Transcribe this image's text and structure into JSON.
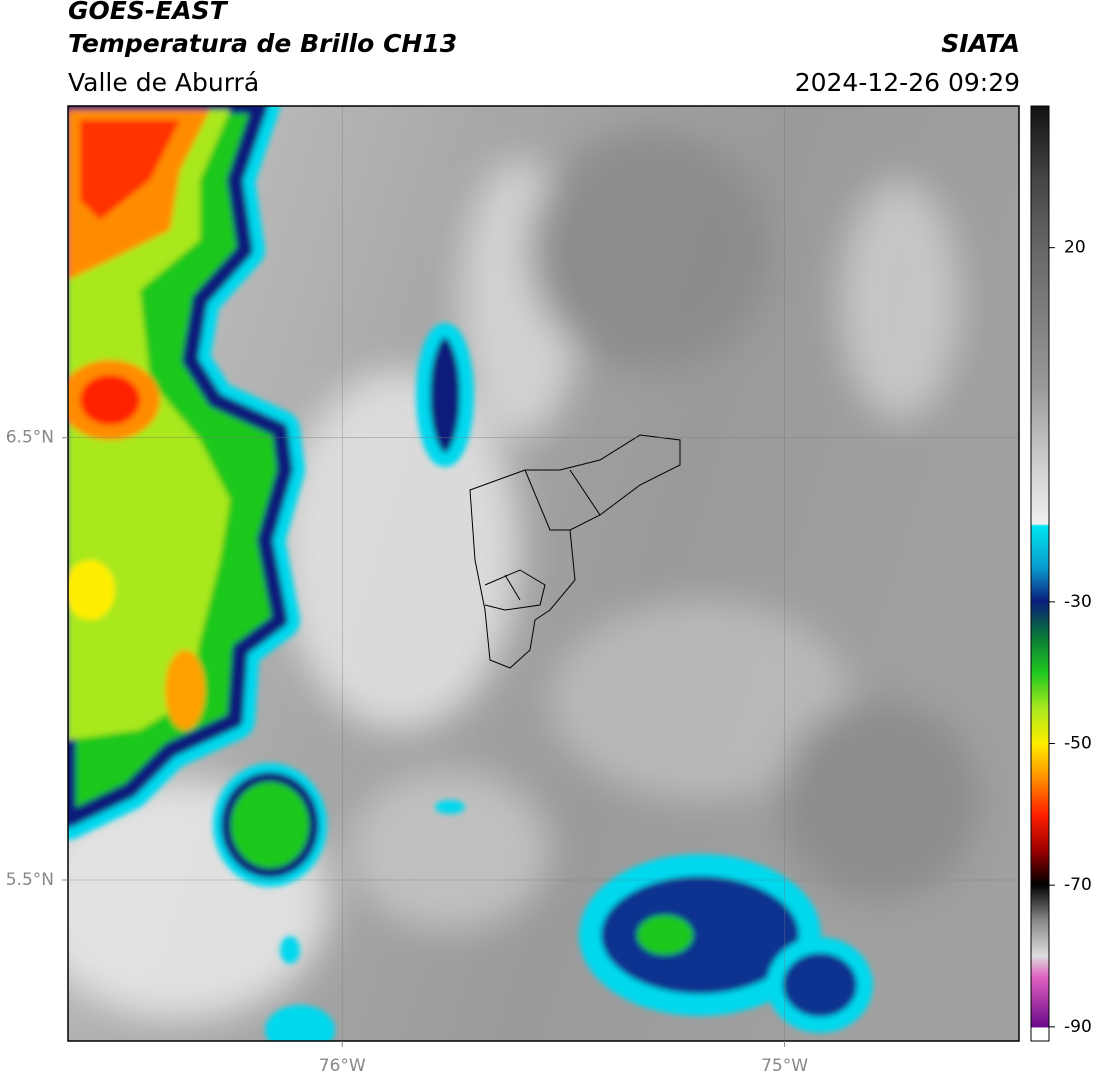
{
  "header": {
    "title": "GOES-EAST",
    "subtitle": "Temperatura de Brillo CH13",
    "region": "Valle de Aburrá",
    "source": "SIATA",
    "datetime": "2024-12-26 09:29"
  },
  "map": {
    "xlim": [
      -76.62,
      -74.47
    ],
    "ylim": [
      5.136,
      7.25
    ],
    "xticks": [
      {
        "value": -76,
        "label": "76°W"
      },
      {
        "value": -75,
        "label": "75°W"
      }
    ],
    "yticks": [
      {
        "value": 6.5,
        "label": "6.5°N"
      },
      {
        "value": 5.5,
        "label": "5.5°N"
      }
    ]
  },
  "colorbar": {
    "lim": [
      -92,
      40
    ],
    "ticks": [
      20,
      -30,
      -50,
      -70,
      -90
    ]
  }
}
